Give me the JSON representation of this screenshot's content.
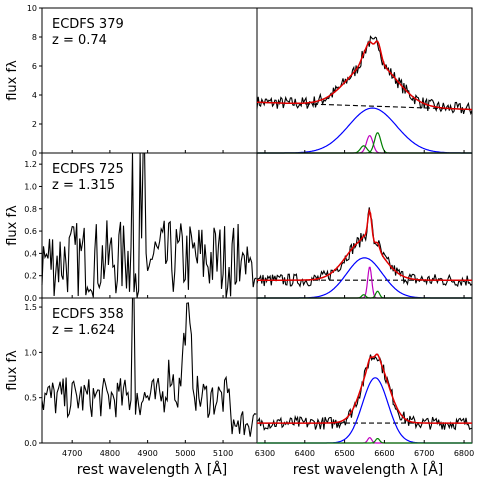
{
  "figure": {
    "xlabel_left": "rest wavelength λ [Å]",
    "xlabel_right": "rest wavelength λ [Å]",
    "ylabel": "flux fλ"
  },
  "chart_data": [
    {
      "type": "line",
      "object": "ECDFS 379",
      "redshift": "z = 0.74",
      "left_panel": {
        "xlim": [
          4620,
          5190
        ],
        "ylim": [
          0,
          10
        ],
        "yticks": [
          0,
          2,
          4,
          6,
          8,
          10
        ],
        "spectrum": "none"
      },
      "right_panel": {
        "xlim": [
          6280,
          6820
        ],
        "ylim": [
          0,
          10
        ],
        "continuum": [
          [
            6280,
            3.5
          ],
          [
            6820,
            3.0
          ]
        ],
        "components": [
          {
            "color": "#0000ff",
            "center": 6570,
            "amp": 3.1,
            "sigma": 60
          },
          {
            "color": "#c000c0",
            "center": 6563,
            "amp": 1.2,
            "sigma": 8
          },
          {
            "color": "#008000",
            "center": 6583,
            "amp": 1.4,
            "sigma": 8
          },
          {
            "color": "#008000",
            "center": 6548,
            "amp": 0.5,
            "sigma": 8
          }
        ]
      }
    },
    {
      "type": "line",
      "object": "ECDFS 725",
      "redshift": "z = 1.315",
      "left_panel": {
        "xlim": [
          4620,
          5190
        ],
        "ylim": [
          0,
          1.3
        ],
        "yticks": [
          0,
          0.2,
          0.4,
          0.6,
          0.8,
          1.0,
          1.2
        ],
        "spectrum": "noisy"
      },
      "right_panel": {
        "xlim": [
          6280,
          6820
        ],
        "ylim": [
          0,
          1.3
        ],
        "continuum": [
          [
            6280,
            0.16
          ],
          [
            6820,
            0.16
          ]
        ],
        "components": [
          {
            "color": "#0000ff",
            "center": 6550,
            "amp": 0.36,
            "sigma": 45
          },
          {
            "color": "#c000c0",
            "center": 6563,
            "amp": 0.28,
            "sigma": 5
          },
          {
            "color": "#008000",
            "center": 6583,
            "amp": 0.06,
            "sigma": 5
          },
          {
            "color": "#008000",
            "center": 6548,
            "amp": 0.03,
            "sigma": 5
          }
        ]
      }
    },
    {
      "type": "line",
      "object": "ECDFS 358",
      "redshift": "z = 1.624",
      "left_panel": {
        "xlim": [
          4620,
          5190
        ],
        "ylim": [
          0,
          1.6
        ],
        "yticks": [
          0,
          0.5,
          1.0,
          1.5
        ],
        "spectrum": "oiii"
      },
      "right_panel": {
        "xlim": [
          6280,
          6820
        ],
        "ylim": [
          0,
          1.6
        ],
        "continuum": [
          [
            6280,
            0.22
          ],
          [
            6820,
            0.22
          ]
        ],
        "components": [
          {
            "color": "#0000ff",
            "center": 6577,
            "amp": 0.72,
            "sigma": 32
          },
          {
            "color": "#c000c0",
            "center": 6563,
            "amp": 0.06,
            "sigma": 5
          },
          {
            "color": "#008000",
            "center": 6583,
            "amp": 0.05,
            "sigma": 5
          }
        ]
      }
    }
  ],
  "x_ticks_left": [
    4700,
    4800,
    4900,
    5000,
    5100
  ],
  "x_ticks_right": [
    6300,
    6400,
    6500,
    6600,
    6700,
    6800
  ],
  "colors": {
    "data": "#000000",
    "fit": "#e00000",
    "broad": "#0000ff",
    "narrow": "#c000c0",
    "nii": "#008000",
    "continuum": "#000000"
  }
}
